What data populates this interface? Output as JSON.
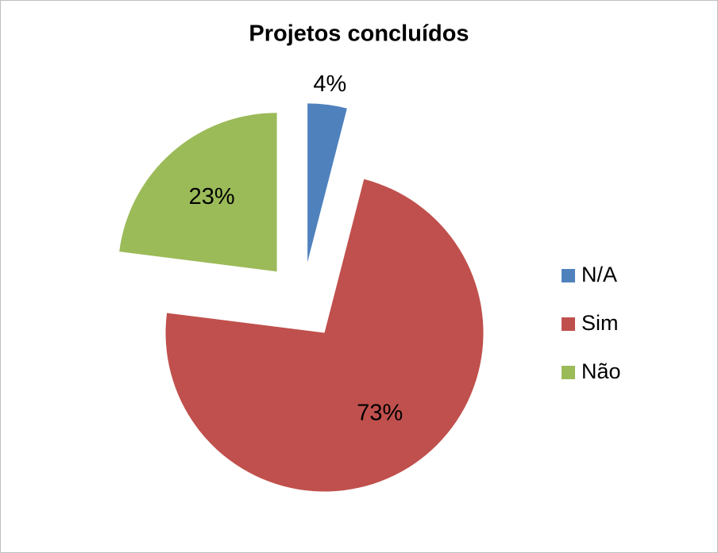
{
  "chart_data": {
    "type": "pie",
    "title": "Projetos concluídos",
    "categories": [
      "N/A",
      "Sim",
      "Não"
    ],
    "values": [
      4,
      73,
      23
    ],
    "value_labels": [
      "4%",
      "73%",
      "23%"
    ],
    "colors": [
      "#4f81bd",
      "#c0504d",
      "#9bbb59"
    ],
    "legend": "right"
  }
}
